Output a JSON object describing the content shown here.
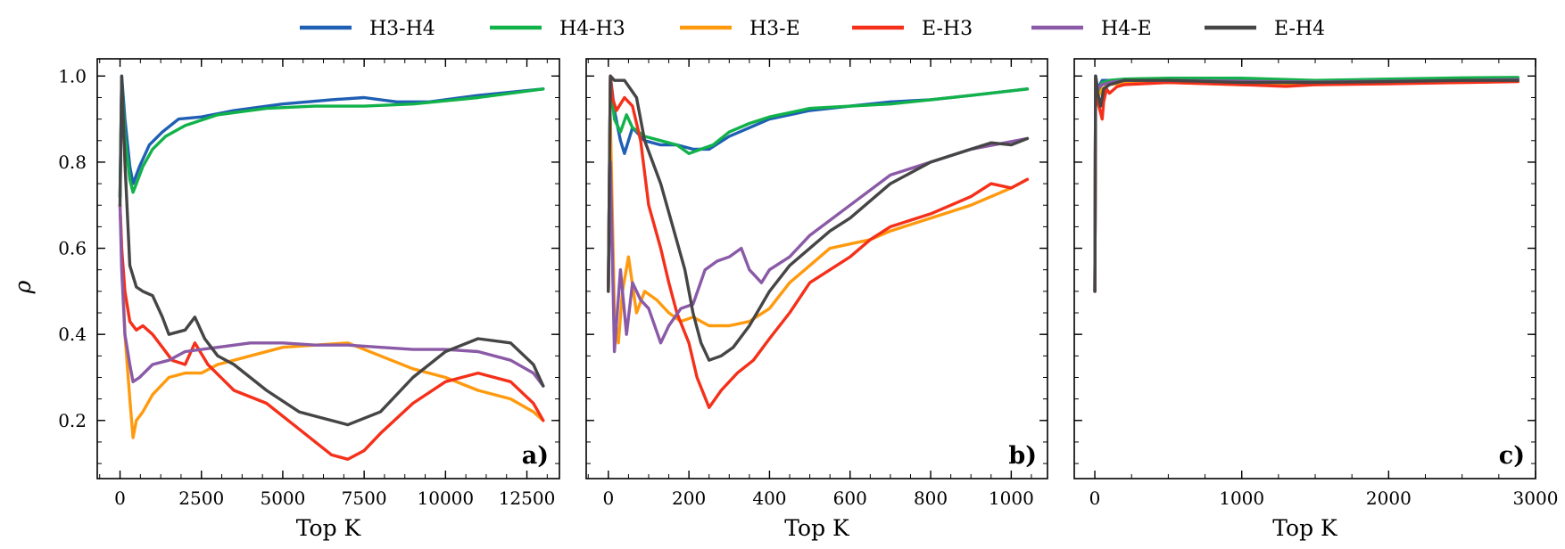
{
  "legend": [
    {
      "name": "H3-H4",
      "color": "#1f5fb4"
    },
    {
      "name": "H4-H3",
      "color": "#12b24a"
    },
    {
      "name": "H3-E",
      "color": "#ff9a0e"
    },
    {
      "name": "E-H3",
      "color": "#f5301a"
    },
    {
      "name": "H4-E",
      "color": "#8a5aa6"
    },
    {
      "name": "E-H4",
      "color": "#454545"
    }
  ],
  "chart_data": [
    {
      "type": "line",
      "panel_label": "a)",
      "xlabel": "Top K",
      "ylabel": "ρ",
      "xlim": [
        -700,
        13500
      ],
      "ylim": [
        0.065,
        1.04
      ],
      "xticks": [
        0,
        2500,
        5000,
        7500,
        10000,
        12500
      ],
      "xtick_labels": [
        "0",
        "2500",
        "5000",
        "7500",
        "10000",
        "12500"
      ],
      "yticks": [
        0.2,
        0.4,
        0.6,
        0.8,
        1.0
      ],
      "ytick_labels": [
        "0.2",
        "0.4",
        "0.6",
        "0.8",
        "1.0"
      ],
      "series": [
        {
          "name": "H3-H4",
          "x": [
            0,
            50,
            150,
            300,
            400,
            600,
            900,
            1300,
            1800,
            2500,
            3500,
            5000,
            6500,
            7500,
            8500,
            9500,
            11000,
            13000
          ],
          "y": [
            0.72,
            1.0,
            0.9,
            0.79,
            0.75,
            0.79,
            0.84,
            0.87,
            0.9,
            0.905,
            0.92,
            0.935,
            0.945,
            0.95,
            0.94,
            0.94,
            0.955,
            0.97
          ]
        },
        {
          "name": "H4-H3",
          "x": [
            0,
            50,
            150,
            300,
            400,
            500,
            700,
            1000,
            1400,
            2000,
            3000,
            4500,
            6000,
            7500,
            9000,
            11000,
            13000
          ],
          "y": [
            0.72,
            0.99,
            0.86,
            0.76,
            0.73,
            0.75,
            0.79,
            0.83,
            0.86,
            0.885,
            0.91,
            0.925,
            0.93,
            0.93,
            0.935,
            0.95,
            0.97
          ]
        },
        {
          "name": "H3-E",
          "x": [
            0,
            50,
            150,
            300,
            400,
            500,
            700,
            1000,
            1500,
            2000,
            2500,
            3000,
            4000,
            5000,
            6000,
            7000,
            8000,
            9000,
            10000,
            11000,
            12000,
            12700,
            13000
          ],
          "y": [
            0.7,
            0.6,
            0.4,
            0.25,
            0.16,
            0.2,
            0.22,
            0.26,
            0.3,
            0.31,
            0.31,
            0.33,
            0.35,
            0.37,
            0.375,
            0.38,
            0.35,
            0.32,
            0.3,
            0.27,
            0.25,
            0.22,
            0.2
          ]
        },
        {
          "name": "E-H3",
          "x": [
            0,
            50,
            150,
            300,
            500,
            700,
            1000,
            1300,
            1600,
            2000,
            2300,
            2700,
            3500,
            4500,
            5500,
            6000,
            6500,
            7000,
            7500,
            8000,
            9000,
            10000,
            11000,
            12000,
            12700,
            13000
          ],
          "y": [
            0.7,
            0.6,
            0.5,
            0.43,
            0.41,
            0.42,
            0.4,
            0.37,
            0.34,
            0.33,
            0.38,
            0.33,
            0.27,
            0.24,
            0.18,
            0.15,
            0.12,
            0.11,
            0.13,
            0.17,
            0.24,
            0.29,
            0.31,
            0.29,
            0.24,
            0.2
          ]
        },
        {
          "name": "H4-E",
          "x": [
            0,
            50,
            150,
            300,
            400,
            600,
            1000,
            1500,
            2000,
            3000,
            4000,
            5000,
            6000,
            7000,
            8000,
            9000,
            10000,
            11000,
            12000,
            12700,
            13000
          ],
          "y": [
            0.7,
            0.55,
            0.4,
            0.33,
            0.29,
            0.3,
            0.33,
            0.34,
            0.36,
            0.37,
            0.38,
            0.38,
            0.375,
            0.375,
            0.37,
            0.365,
            0.365,
            0.36,
            0.34,
            0.31,
            0.28
          ]
        },
        {
          "name": "E-H4",
          "x": [
            0,
            50,
            150,
            300,
            500,
            700,
            1000,
            1300,
            1500,
            2000,
            2300,
            2600,
            3000,
            3500,
            4500,
            5500,
            6000,
            7000,
            8000,
            9000,
            10000,
            11000,
            12000,
            12700,
            13000
          ],
          "y": [
            0.7,
            1.0,
            0.8,
            0.56,
            0.51,
            0.5,
            0.49,
            0.44,
            0.4,
            0.41,
            0.44,
            0.39,
            0.35,
            0.33,
            0.27,
            0.22,
            0.21,
            0.19,
            0.22,
            0.3,
            0.36,
            0.39,
            0.38,
            0.33,
            0.28
          ]
        }
      ]
    },
    {
      "type": "line",
      "panel_label": "b)",
      "xlabel": "Top K",
      "ylabel": "",
      "xlim": [
        -55,
        1090
      ],
      "ylim": [
        0.065,
        1.04
      ],
      "xticks": [
        0,
        200,
        400,
        600,
        800,
        1000
      ],
      "xtick_labels": [
        "0",
        "200",
        "400",
        "600",
        "800",
        "1000"
      ],
      "yticks": [
        0.2,
        0.4,
        0.6,
        0.8,
        1.0
      ],
      "ytick_labels": [],
      "series": [
        {
          "name": "H3-H4",
          "x": [
            0,
            5,
            15,
            30,
            40,
            60,
            90,
            130,
            170,
            210,
            250,
            300,
            350,
            400,
            500,
            600,
            700,
            800,
            900,
            1040
          ],
          "y": [
            0.5,
            1.0,
            0.92,
            0.85,
            0.82,
            0.88,
            0.85,
            0.84,
            0.84,
            0.83,
            0.83,
            0.86,
            0.88,
            0.9,
            0.92,
            0.93,
            0.94,
            0.945,
            0.955,
            0.97
          ]
        },
        {
          "name": "H4-H3",
          "x": [
            0,
            5,
            15,
            30,
            45,
            60,
            90,
            130,
            170,
            200,
            230,
            260,
            300,
            350,
            400,
            500,
            600,
            700,
            800,
            900,
            1040
          ],
          "y": [
            0.5,
            0.99,
            0.9,
            0.87,
            0.91,
            0.88,
            0.86,
            0.85,
            0.84,
            0.82,
            0.83,
            0.84,
            0.87,
            0.89,
            0.905,
            0.925,
            0.93,
            0.935,
            0.945,
            0.955,
            0.97
          ]
        },
        {
          "name": "H3-E",
          "x": [
            0,
            5,
            15,
            25,
            35,
            50,
            70,
            90,
            120,
            150,
            180,
            210,
            250,
            300,
            350,
            400,
            450,
            500,
            550,
            600,
            650,
            700,
            800,
            900,
            1000,
            1040
          ],
          "y": [
            0.5,
            0.9,
            0.45,
            0.38,
            0.5,
            0.58,
            0.45,
            0.5,
            0.48,
            0.45,
            0.43,
            0.44,
            0.42,
            0.42,
            0.43,
            0.46,
            0.52,
            0.56,
            0.6,
            0.61,
            0.62,
            0.64,
            0.67,
            0.7,
            0.74,
            0.76
          ]
        },
        {
          "name": "E-H3",
          "x": [
            0,
            5,
            10,
            20,
            40,
            60,
            80,
            100,
            130,
            150,
            170,
            200,
            220,
            250,
            280,
            320,
            360,
            400,
            450,
            500,
            550,
            600,
            650,
            700,
            800,
            900,
            950,
            1000,
            1040
          ],
          "y": [
            0.5,
            1.0,
            0.95,
            0.92,
            0.95,
            0.93,
            0.85,
            0.7,
            0.6,
            0.52,
            0.45,
            0.38,
            0.3,
            0.23,
            0.27,
            0.31,
            0.34,
            0.39,
            0.45,
            0.52,
            0.55,
            0.58,
            0.62,
            0.65,
            0.68,
            0.72,
            0.75,
            0.74,
            0.76
          ]
        },
        {
          "name": "H4-E",
          "x": [
            0,
            5,
            15,
            30,
            45,
            60,
            80,
            100,
            130,
            150,
            180,
            210,
            240,
            270,
            300,
            330,
            350,
            380,
            400,
            450,
            500,
            600,
            700,
            800,
            900,
            1040
          ],
          "y": [
            0.5,
            0.8,
            0.36,
            0.55,
            0.4,
            0.52,
            0.48,
            0.46,
            0.38,
            0.42,
            0.46,
            0.47,
            0.55,
            0.57,
            0.58,
            0.6,
            0.55,
            0.52,
            0.55,
            0.58,
            0.63,
            0.7,
            0.77,
            0.8,
            0.83,
            0.855
          ]
        },
        {
          "name": "E-H4",
          "x": [
            0,
            5,
            15,
            40,
            70,
            90,
            110,
            130,
            160,
            190,
            210,
            230,
            250,
            280,
            310,
            350,
            400,
            450,
            500,
            550,
            600,
            700,
            800,
            900,
            950,
            1000,
            1040
          ],
          "y": [
            0.5,
            1.0,
            0.99,
            0.99,
            0.95,
            0.85,
            0.8,
            0.75,
            0.65,
            0.55,
            0.45,
            0.38,
            0.34,
            0.35,
            0.37,
            0.42,
            0.5,
            0.56,
            0.6,
            0.64,
            0.67,
            0.75,
            0.8,
            0.83,
            0.845,
            0.84,
            0.855
          ]
        }
      ]
    },
    {
      "type": "line",
      "panel_label": "c)",
      "xlabel": "Top K",
      "ylabel": "",
      "xlim": [
        -140,
        3000
      ],
      "ylim": [
        0.065,
        1.04
      ],
      "xticks": [
        0,
        1000,
        2000,
        3000
      ],
      "xtick_labels": [
        "0",
        "1000",
        "2000",
        "3000"
      ],
      "yticks": [
        0.2,
        0.4,
        0.6,
        0.8,
        1.0
      ],
      "ytick_labels": [],
      "series": [
        {
          "name": "H3-H4",
          "x": [
            0,
            5,
            20,
            50,
            100,
            200,
            500,
            1000,
            1500,
            2000,
            2500,
            2880
          ],
          "y": [
            0.5,
            1.0,
            0.97,
            0.99,
            0.99,
            0.992,
            0.99,
            0.99,
            0.988,
            0.99,
            0.993,
            0.995
          ]
        },
        {
          "name": "H4-H3",
          "x": [
            0,
            5,
            20,
            50,
            100,
            200,
            500,
            1000,
            1500,
            2000,
            2500,
            2880
          ],
          "y": [
            0.5,
            1.0,
            0.96,
            0.985,
            0.99,
            0.993,
            0.995,
            0.995,
            0.99,
            0.993,
            0.996,
            0.997
          ]
        },
        {
          "name": "H3-E",
          "x": [
            0,
            5,
            20,
            50,
            100,
            200,
            500,
            1000,
            1500,
            2000,
            2500,
            2880
          ],
          "y": [
            0.5,
            0.99,
            0.95,
            0.97,
            0.98,
            0.985,
            0.985,
            0.98,
            0.98,
            0.983,
            0.985,
            0.988
          ]
        },
        {
          "name": "E-H3",
          "x": [
            0,
            5,
            20,
            50,
            60,
            80,
            100,
            150,
            200,
            500,
            1000,
            1300,
            1500,
            2000,
            2500,
            2880
          ],
          "y": [
            0.5,
            0.99,
            0.94,
            0.9,
            0.94,
            0.97,
            0.96,
            0.975,
            0.98,
            0.985,
            0.98,
            0.976,
            0.98,
            0.982,
            0.985,
            0.987
          ]
        },
        {
          "name": "H4-E",
          "x": [
            0,
            5,
            20,
            50,
            100,
            200,
            500,
            1000,
            1500,
            2000,
            2500,
            2880
          ],
          "y": [
            0.5,
            1.0,
            0.97,
            0.98,
            0.985,
            0.99,
            0.99,
            0.988,
            0.986,
            0.988,
            0.99,
            0.992
          ]
        },
        {
          "name": "E-H4",
          "x": [
            0,
            5,
            20,
            40,
            60,
            100,
            200,
            500,
            1000,
            1500,
            2000,
            2500,
            2880
          ],
          "y": [
            0.5,
            1.0,
            0.96,
            0.93,
            0.97,
            0.98,
            0.99,
            0.99,
            0.985,
            0.985,
            0.987,
            0.99,
            0.99
          ]
        }
      ]
    }
  ]
}
